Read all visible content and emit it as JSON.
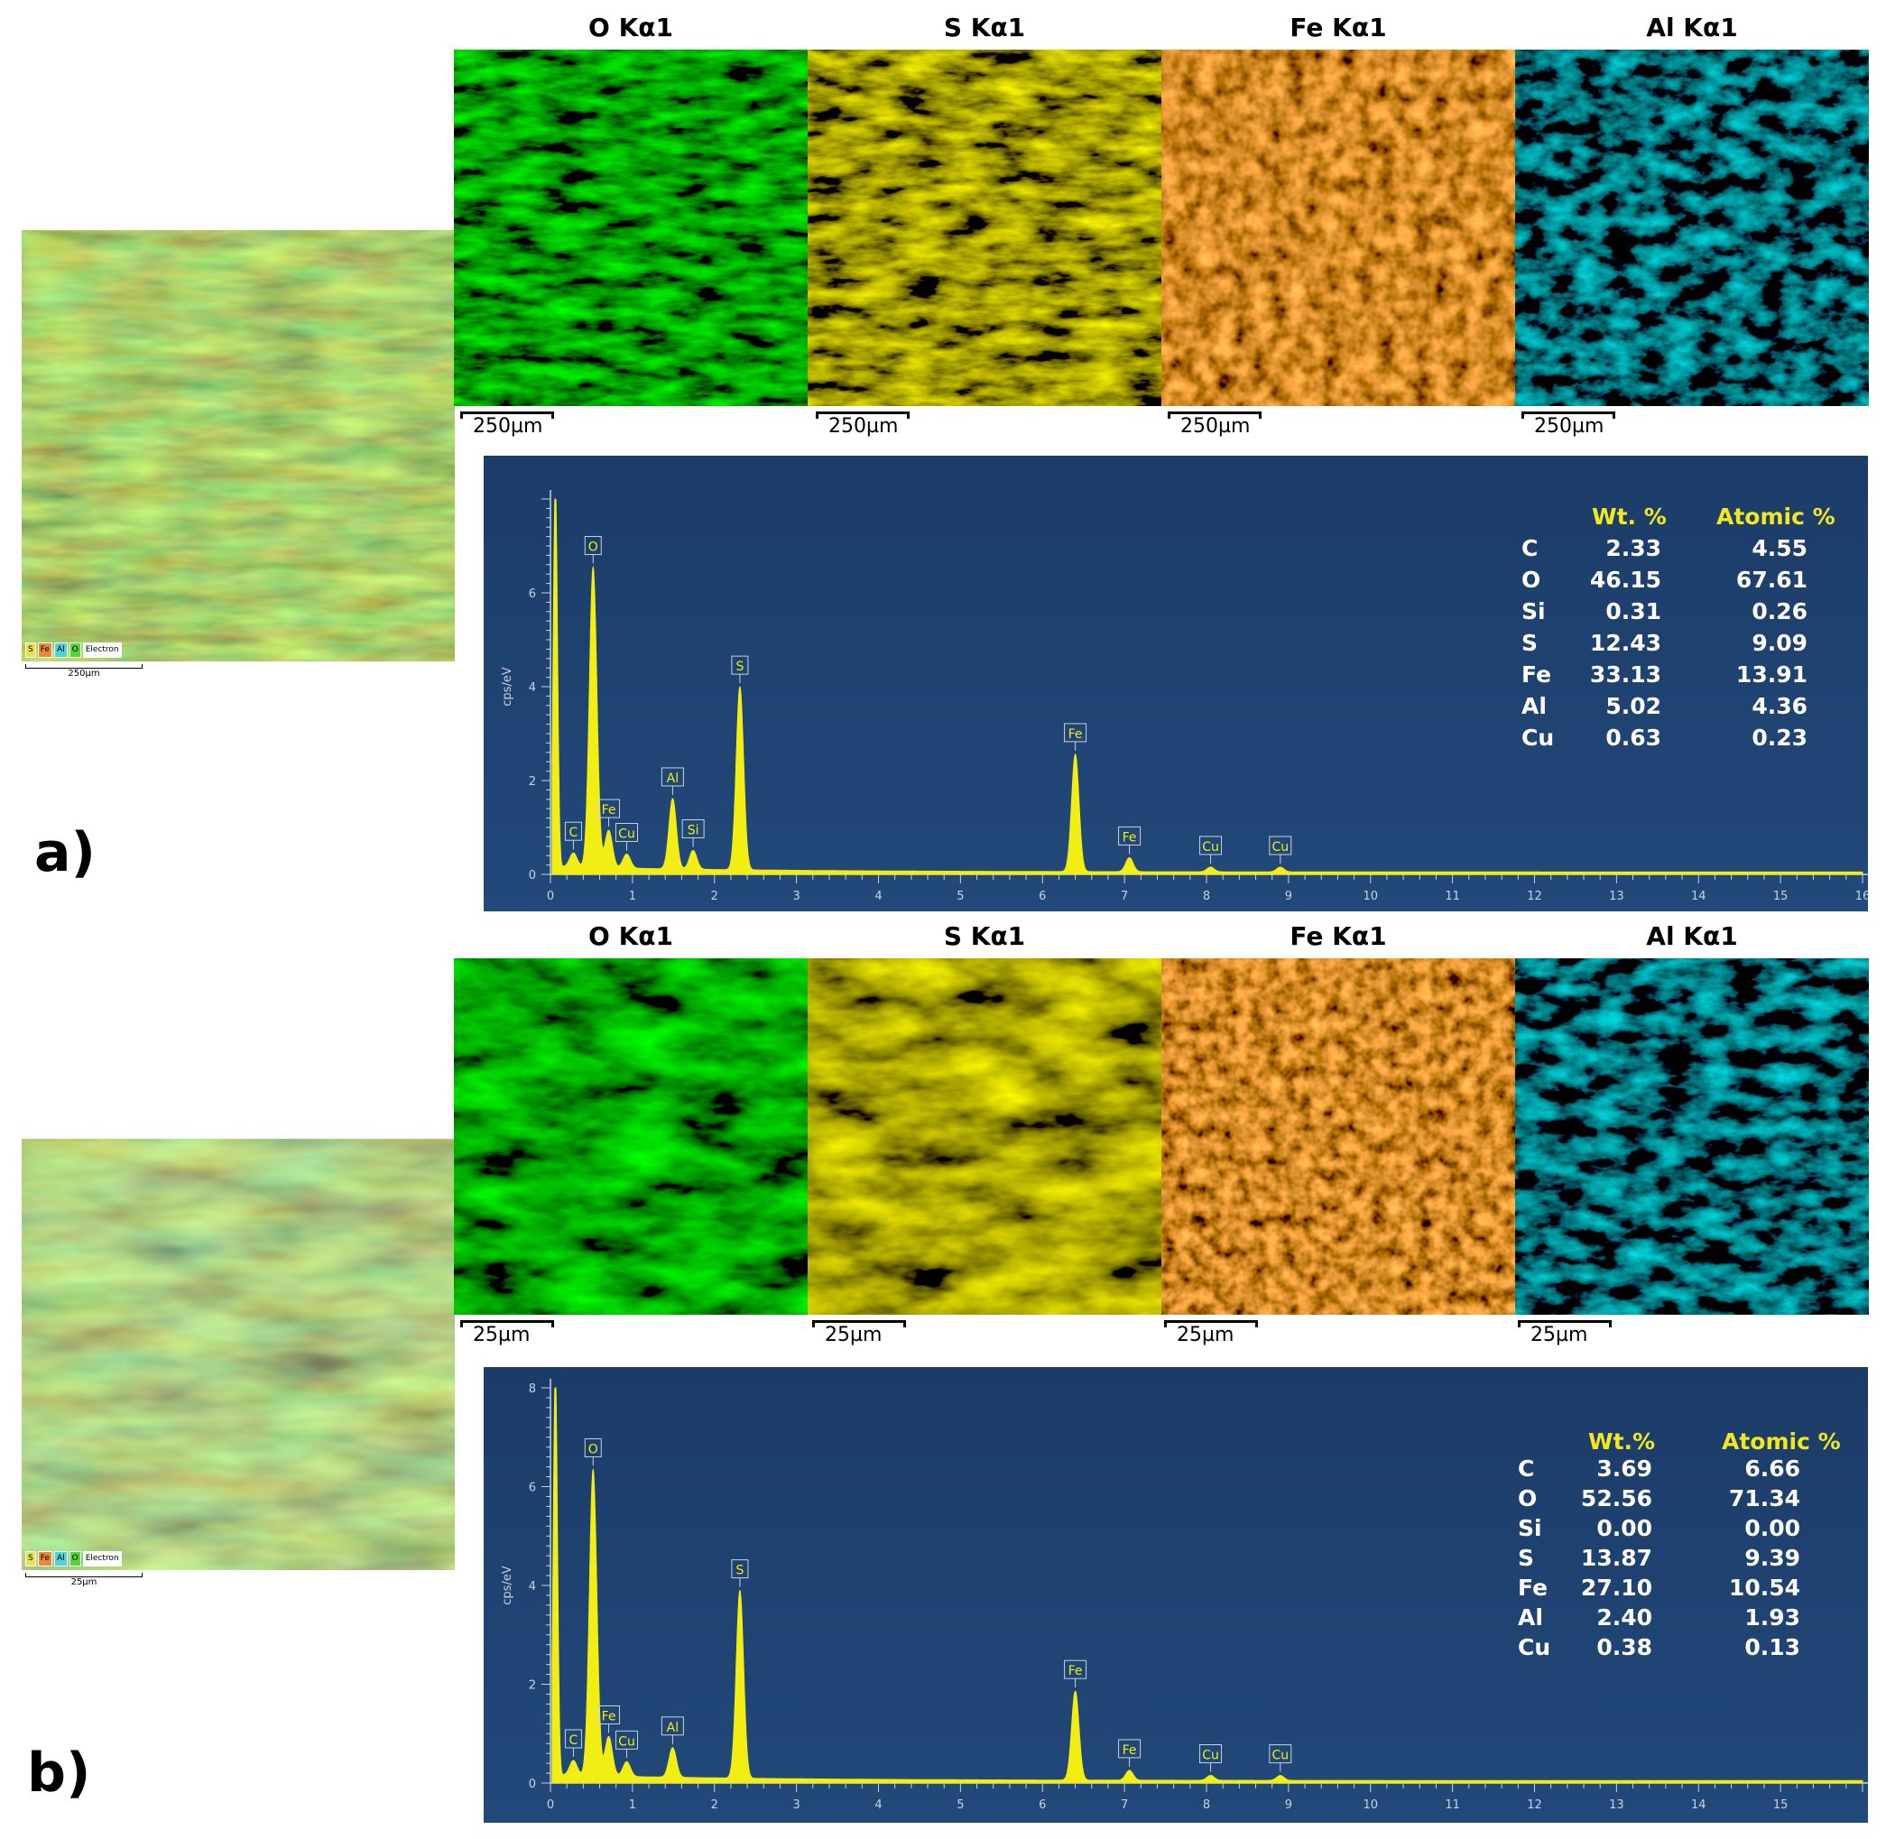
{
  "panels": [
    {
      "letter": "a)",
      "overlay": {
        "legend": [
          "S",
          "Fe",
          "Al",
          "O",
          "Electron"
        ],
        "scale": "250µm"
      },
      "maps": [
        {
          "title": "O Kα1",
          "color": "#3ed11a",
          "scale": "250µm"
        },
        {
          "title": "S Kα1",
          "color": "#d8d223",
          "scale": "250µm"
        },
        {
          "title": "Fe Kα1",
          "color": "#e0681c",
          "scale": "250µm"
        },
        {
          "title": "Al Kα1",
          "color": "#2fd0d8",
          "scale": "250µm"
        }
      ],
      "chart_data": {
        "type": "line",
        "ylabel": "cps/eV",
        "xlim": [
          0,
          16
        ],
        "ylim": [
          0,
          8
        ],
        "x_ticks": [
          0,
          1,
          2,
          3,
          4,
          5,
          6,
          7,
          8,
          9,
          10,
          11,
          12,
          13,
          14,
          15,
          16
        ],
        "x_tick_labels": [
          "0",
          "1",
          "2",
          "3",
          "4",
          "5",
          "6",
          "7",
          "8",
          "9",
          "10",
          "11",
          "12",
          "13",
          "14",
          "15",
          "16"
        ],
        "y_ticks": [
          0,
          2,
          4,
          6
        ],
        "series_color": "#f2ee14",
        "peaks": [
          {
            "label": "C",
            "x": 0.28,
            "y": 0.3
          },
          {
            "label": "O",
            "x": 0.52,
            "y": 6.4
          },
          {
            "label": "Fe",
            "x": 0.71,
            "y": 0.8
          },
          {
            "label": "Cu",
            "x": 0.93,
            "y": 0.3
          },
          {
            "label": "Al",
            "x": 1.49,
            "y": 1.5
          },
          {
            "label": "Si",
            "x": 1.74,
            "y": 0.4
          },
          {
            "label": "S",
            "x": 2.31,
            "y": 3.9
          },
          {
            "label": "Fe",
            "x": 6.4,
            "y": 2.5
          },
          {
            "label": "Fe",
            "x": 7.06,
            "y": 0.3
          },
          {
            "label": "Cu",
            "x": 8.05,
            "y": 0.1
          },
          {
            "label": "Cu",
            "x": 8.9,
            "y": 0.1
          }
        ],
        "table": {
          "headers": [
            "Wt. %",
            "Atomic %"
          ],
          "rows": [
            {
              "el": "C",
              "wt": "2.33",
              "at": "4.55"
            },
            {
              "el": "O",
              "wt": "46.15",
              "at": "67.61"
            },
            {
              "el": "Si",
              "wt": "0.31",
              "at": "0.26"
            },
            {
              "el": "S",
              "wt": "12.43",
              "at": "9.09"
            },
            {
              "el": "Fe",
              "wt": "33.13",
              "at": "13.91"
            },
            {
              "el": "Al",
              "wt": "5.02",
              "at": "4.36"
            },
            {
              "el": "Cu",
              "wt": "0.63",
              "at": "0.23"
            }
          ]
        }
      }
    },
    {
      "letter": "b)",
      "overlay": {
        "legend": [
          "S",
          "Fe",
          "Al",
          "O",
          "Electron"
        ],
        "scale": "25µm"
      },
      "maps": [
        {
          "title": "O Kα1",
          "color": "#3ed11a",
          "scale": "25µm"
        },
        {
          "title": "S Kα1",
          "color": "#d8d223",
          "scale": "25µm"
        },
        {
          "title": "Fe Kα1",
          "color": "#e0681c",
          "scale": "25µm"
        },
        {
          "title": "Al Kα1",
          "color": "#2fd0d8",
          "scale": "25µm"
        }
      ],
      "chart_data": {
        "type": "line",
        "ylabel": "cps/eV",
        "xlim": [
          0,
          16
        ],
        "ylim": [
          0,
          8
        ],
        "x_ticks": [
          0,
          1,
          2,
          3,
          4,
          5,
          6,
          7,
          8,
          9,
          10,
          11,
          12,
          13,
          14,
          15,
          16
        ],
        "x_tick_labels": [
          "0",
          "1",
          "2",
          "3",
          "4",
          "5",
          "6",
          "7",
          "8",
          "9",
          "10",
          "11",
          "12",
          "13",
          "14",
          "15",
          ""
        ],
        "y_ticks": [
          0,
          2,
          4,
          6,
          8
        ],
        "series_color": "#f2ee14",
        "peaks": [
          {
            "label": "C",
            "x": 0.28,
            "y": 0.3
          },
          {
            "label": "O",
            "x": 0.52,
            "y": 6.2
          },
          {
            "label": "Fe",
            "x": 0.71,
            "y": 0.8
          },
          {
            "label": "Cu",
            "x": 0.93,
            "y": 0.3
          },
          {
            "label": "Al",
            "x": 1.49,
            "y": 0.6
          },
          {
            "label": "S",
            "x": 2.31,
            "y": 3.8
          },
          {
            "label": "Fe",
            "x": 6.4,
            "y": 1.8
          },
          {
            "label": "Fe",
            "x": 7.06,
            "y": 0.2
          },
          {
            "label": "Cu",
            "x": 8.05,
            "y": 0.1
          },
          {
            "label": "Cu",
            "x": 8.9,
            "y": 0.1
          }
        ],
        "table": {
          "headers": [
            "Wt.%",
            "Atomic %"
          ],
          "rows": [
            {
              "el": "C",
              "wt": "3.69",
              "at": "6.66"
            },
            {
              "el": "O",
              "wt": "52.56",
              "at": "71.34"
            },
            {
              "el": "Si",
              "wt": "0.00",
              "at": "0.00"
            },
            {
              "el": "S",
              "wt": "13.87",
              "at": "9.39"
            },
            {
              "el": "Fe",
              "wt": "27.10",
              "at": "10.54"
            },
            {
              "el": "Al",
              "wt": "2.40",
              "at": "1.93"
            },
            {
              "el": "Cu",
              "wt": "0.38",
              "at": "0.13"
            }
          ]
        }
      }
    }
  ]
}
